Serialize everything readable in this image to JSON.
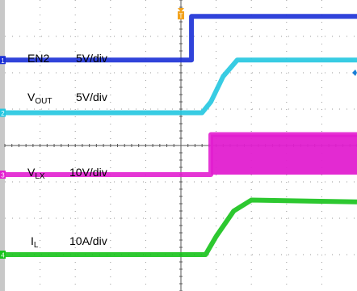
{
  "chart_data": {
    "type": "line",
    "title": "",
    "xlabel": "",
    "ylabel": "",
    "x_divisions": 10,
    "y_divisions": 8,
    "xlim": [
      0,
      10
    ],
    "ylim": [
      0,
      8
    ],
    "grid": true,
    "trigger_marker": "T",
    "series": [
      {
        "name": "EN2",
        "channel": "1",
        "scale": "5V/div",
        "color": "#1a2fd6",
        "x": [
          0,
          5.3,
          5.3,
          10
        ],
        "y": [
          6.35,
          6.35,
          7.55,
          7.55
        ]
      },
      {
        "name": "VOUT",
        "channel": "2",
        "scale": "5V/div",
        "color": "#22c6e0",
        "x": [
          0,
          5.6,
          5.85,
          6.2,
          6.6,
          10
        ],
        "y": [
          4.9,
          4.9,
          5.2,
          5.9,
          6.35,
          6.35
        ]
      },
      {
        "name": "VLX",
        "channel": "3",
        "scale": "10V/div",
        "color": "#e21fd0",
        "x": [
          0,
          5.85,
          5.85,
          10
        ],
        "y": [
          3.2,
          3.2,
          4.3,
          4.3
        ]
      },
      {
        "name": "IL",
        "channel": "4",
        "scale": "10A/div",
        "color": "#16c21a",
        "x": [
          0,
          5.7,
          6.0,
          6.5,
          7.0,
          10
        ],
        "y": [
          1.0,
          1.0,
          1.5,
          2.2,
          2.5,
          2.45
        ]
      }
    ],
    "labels": {
      "en2": {
        "name": "EN2",
        "scale": "5V/div"
      },
      "vout": {
        "main": "V",
        "sub": "OUT",
        "scale": "5V/div"
      },
      "vlx": {
        "main": "V",
        "sub": "LX",
        "scale": "10V/div"
      },
      "il": {
        "main": "I",
        "sub": "L",
        "scale": "10A/div"
      }
    }
  }
}
